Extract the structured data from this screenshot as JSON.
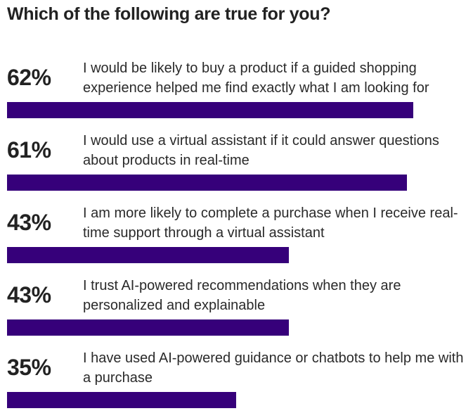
{
  "chart_data": {
    "type": "bar",
    "orientation": "horizontal",
    "title": "Which of the following are true for you?",
    "bar_color": "#36007a",
    "xlim": [
      0,
      100
    ],
    "items": [
      {
        "value": 62,
        "value_label": "62%",
        "label": "I would be likely to buy a product if a guided shopping experience helped me find exactly what I am looking for"
      },
      {
        "value": 61,
        "value_label": "61%",
        "label": "I would use a virtual assistant if it could answer questions about products in real-time"
      },
      {
        "value": 43,
        "value_label": "43%",
        "label": "I am more likely to complete a purchase when I receive real-time support through a virtual assistant"
      },
      {
        "value": 43,
        "value_label": "43%",
        "label": "I trust AI-powered recommendations when they are personalized and explainable"
      },
      {
        "value": 35,
        "value_label": "35%",
        "label": "I have used AI-powered guidance or chatbots to help me with a purchase"
      }
    ]
  }
}
